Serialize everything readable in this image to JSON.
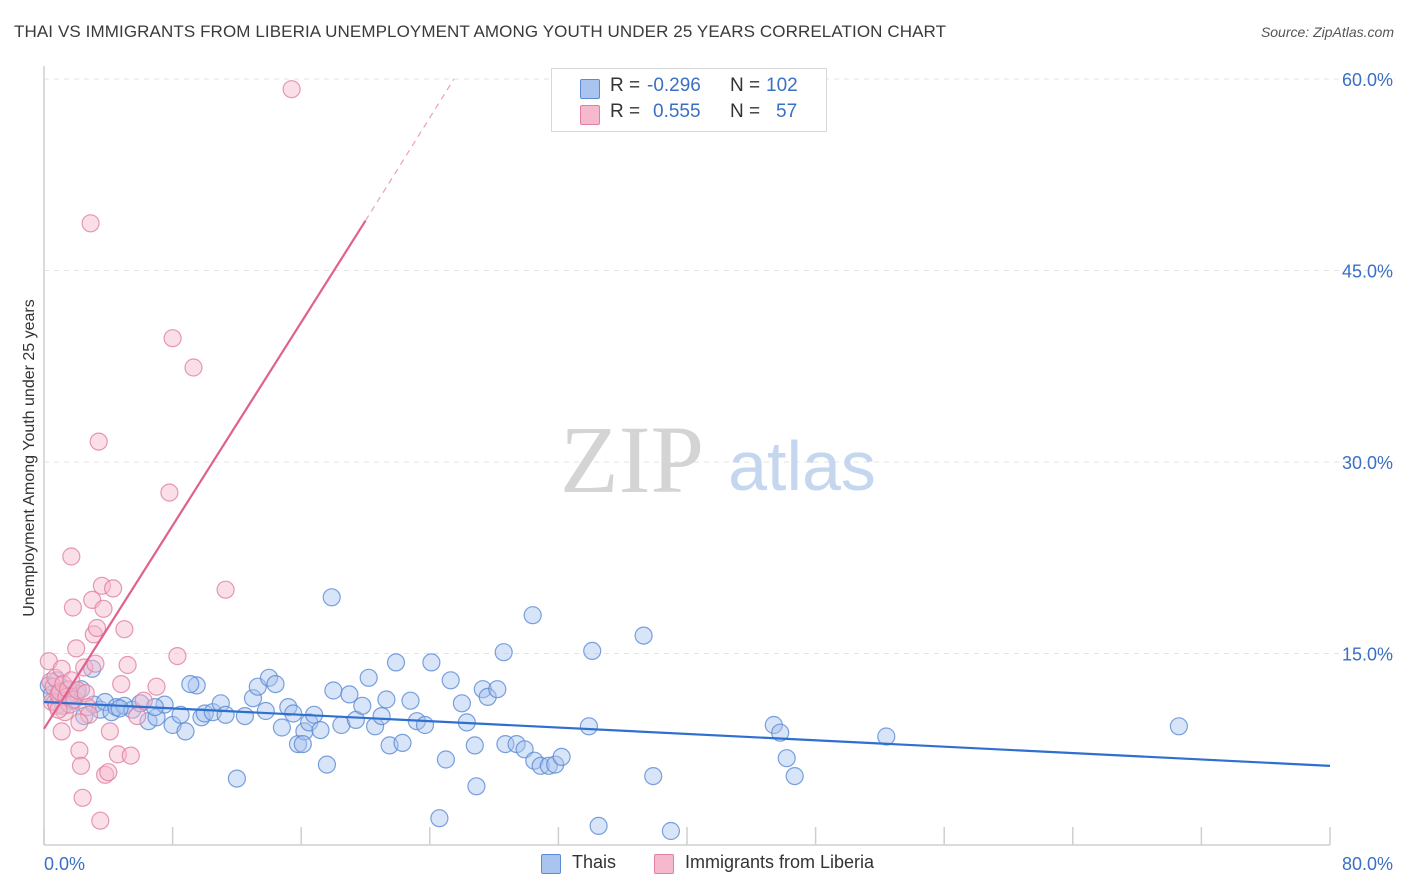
{
  "title": "THAI VS IMMIGRANTS FROM LIBERIA UNEMPLOYMENT AMONG YOUTH UNDER 25 YEARS CORRELATION CHART",
  "source": "Source: ZipAtlas.com",
  "watermark": {
    "zip": "ZIP",
    "atlas": "atlas"
  },
  "legend": {
    "rows": [
      {
        "r_label": "R =",
        "r_value": "-0.296",
        "n_label": "N =",
        "n_value": "102",
        "color": "#a9c4ee",
        "edge": "#5a8ad6"
      },
      {
        "r_label": "R =",
        "r_value": "0.555",
        "n_label": "N =",
        "n_value": "57",
        "color": "#f6b8cc",
        "edge": "#e07fa0"
      }
    ]
  },
  "bottom_legend": [
    {
      "label": "Thais",
      "color": "#a9c4ee",
      "edge": "#5a8ad6"
    },
    {
      "label": "Immigrants from Liberia",
      "color": "#f6b8cc",
      "edge": "#e07fa0"
    }
  ],
  "chart_data": {
    "type": "scatter",
    "title": "THAI VS IMMIGRANTS FROM LIBERIA UNEMPLOYMENT AMONG YOUTH UNDER 25 YEARS CORRELATION CHART",
    "xlabel": "",
    "ylabel": "Unemployment Among Youth under 25 years",
    "xlim": [
      0,
      80
    ],
    "ylim": [
      0,
      60
    ],
    "x_tick_labels": [
      "0.0%",
      "80.0%"
    ],
    "y_tick_values": [
      15,
      30,
      45,
      60
    ],
    "y_tick_labels": [
      "15.0%",
      "30.0%",
      "45.0%",
      "60.0%"
    ],
    "grid": true,
    "legend_position": "top-center",
    "series": [
      {
        "name": "Thais",
        "color": "#a9c4ee",
        "edge": "#5a8ad6",
        "line_color": "#2f6fcf",
        "trend": {
          "x": [
            0,
            80
          ],
          "y": [
            11.2,
            6.2
          ]
        },
        "points": [
          [
            0.3,
            12.5
          ],
          [
            0.5,
            11.8
          ],
          [
            0.7,
            11.2
          ],
          [
            0.8,
            12.9
          ],
          [
            1.0,
            11.5
          ],
          [
            1.2,
            10.9
          ],
          [
            1.4,
            12.1
          ],
          [
            1.6,
            11.7
          ],
          [
            1.8,
            11.3
          ],
          [
            2.0,
            11.9
          ],
          [
            2.3,
            12.2
          ],
          [
            2.5,
            10.1
          ],
          [
            3.0,
            13.8
          ],
          [
            3.1,
            11.0
          ],
          [
            3.5,
            10.6
          ],
          [
            3.8,
            11.2
          ],
          [
            4.2,
            10.4
          ],
          [
            4.5,
            10.8
          ],
          [
            5.0,
            10.9
          ],
          [
            5.5,
            10.6
          ],
          [
            6.0,
            11.1
          ],
          [
            6.5,
            9.7
          ],
          [
            7.0,
            10.0
          ],
          [
            7.5,
            11.0
          ],
          [
            8.0,
            9.4
          ],
          [
            8.5,
            10.2
          ],
          [
            8.8,
            8.9
          ],
          [
            9.5,
            12.5
          ],
          [
            9.8,
            10.0
          ],
          [
            10.0,
            10.3
          ],
          [
            10.5,
            10.4
          ],
          [
            11.0,
            11.1
          ],
          [
            11.3,
            10.2
          ],
          [
            12.0,
            5.2
          ],
          [
            12.5,
            10.1
          ],
          [
            13.0,
            11.5
          ],
          [
            13.3,
            12.4
          ],
          [
            13.8,
            10.5
          ],
          [
            14.0,
            13.1
          ],
          [
            14.4,
            12.6
          ],
          [
            14.8,
            9.2
          ],
          [
            15.2,
            10.8
          ],
          [
            15.5,
            10.3
          ],
          [
            15.8,
            7.9
          ],
          [
            16.2,
            8.9
          ],
          [
            16.5,
            9.6
          ],
          [
            16.8,
            10.2
          ],
          [
            17.2,
            9.0
          ],
          [
            17.6,
            6.3
          ],
          [
            18.0,
            12.1
          ],
          [
            18.5,
            9.4
          ],
          [
            19.0,
            11.8
          ],
          [
            19.4,
            9.8
          ],
          [
            19.8,
            10.9
          ],
          [
            20.2,
            13.1
          ],
          [
            20.6,
            9.3
          ],
          [
            21.0,
            10.1
          ],
          [
            21.5,
            7.8
          ],
          [
            21.9,
            14.3
          ],
          [
            22.3,
            8.0
          ],
          [
            22.8,
            11.3
          ],
          [
            23.2,
            9.7
          ],
          [
            23.7,
            9.4
          ],
          [
            24.1,
            14.3
          ],
          [
            24.6,
            2.1
          ],
          [
            25.0,
            6.7
          ],
          [
            25.3,
            12.9
          ],
          [
            26.0,
            11.1
          ],
          [
            26.3,
            9.6
          ],
          [
            26.8,
            7.8
          ],
          [
            27.3,
            12.2
          ],
          [
            27.6,
            11.6
          ],
          [
            28.2,
            12.2
          ],
          [
            28.7,
            7.9
          ],
          [
            29.4,
            7.9
          ],
          [
            29.9,
            7.5
          ],
          [
            30.5,
            6.6
          ],
          [
            30.9,
            6.2
          ],
          [
            31.4,
            6.2
          ],
          [
            31.8,
            6.3
          ],
          [
            32.2,
            6.9
          ],
          [
            33.9,
            9.3
          ],
          [
            34.5,
            1.5
          ],
          [
            37.3,
            16.4
          ],
          [
            37.9,
            5.4
          ],
          [
            39.0,
            1.1
          ],
          [
            45.4,
            9.4
          ],
          [
            46.2,
            6.8
          ],
          [
            46.7,
            5.4
          ],
          [
            52.4,
            8.5
          ],
          [
            70.6,
            9.3
          ],
          [
            17.9,
            19.4
          ],
          [
            30.4,
            18.0
          ],
          [
            28.6,
            15.1
          ],
          [
            34.1,
            15.2
          ],
          [
            45.8,
            8.8
          ],
          [
            16.1,
            7.9
          ],
          [
            26.9,
            4.6
          ],
          [
            21.3,
            11.4
          ],
          [
            9.1,
            12.6
          ],
          [
            4.7,
            10.7
          ],
          [
            6.9,
            10.8
          ]
        ]
      },
      {
        "name": "Immigrants from Liberia",
        "color": "#f6b8cc",
        "edge": "#e07fa0",
        "line_color": "#e0608e",
        "trend": {
          "x": [
            0,
            20
          ],
          "y": [
            9.1,
            48.9
          ]
        },
        "trend_dashed": {
          "x": [
            20,
            25.5
          ],
          "y": [
            48.9,
            60.0
          ]
        },
        "points": [
          [
            0.3,
            14.4
          ],
          [
            0.4,
            12.8
          ],
          [
            0.5,
            11.2
          ],
          [
            0.6,
            12.4
          ],
          [
            0.7,
            13.1
          ],
          [
            0.8,
            10.9
          ],
          [
            0.9,
            11.8
          ],
          [
            1.0,
            12.0
          ],
          [
            1.1,
            13.8
          ],
          [
            1.2,
            12.6
          ],
          [
            1.3,
            10.4
          ],
          [
            1.4,
            11.6
          ],
          [
            1.5,
            12.2
          ],
          [
            1.6,
            11.0
          ],
          [
            1.7,
            12.9
          ],
          [
            1.8,
            18.6
          ],
          [
            1.9,
            11.4
          ],
          [
            2.0,
            15.4
          ],
          [
            2.1,
            12.1
          ],
          [
            2.2,
            7.4
          ],
          [
            2.3,
            6.2
          ],
          [
            2.4,
            3.7
          ],
          [
            2.5,
            13.9
          ],
          [
            2.6,
            11.9
          ],
          [
            2.7,
            10.8
          ],
          [
            2.8,
            10.2
          ],
          [
            3.0,
            19.2
          ],
          [
            3.1,
            16.5
          ],
          [
            3.2,
            14.2
          ],
          [
            3.3,
            17.0
          ],
          [
            3.5,
            1.9
          ],
          [
            3.6,
            20.3
          ],
          [
            3.8,
            5.5
          ],
          [
            4.0,
            5.7
          ],
          [
            4.1,
            8.9
          ],
          [
            4.3,
            20.1
          ],
          [
            4.6,
            7.1
          ],
          [
            4.8,
            12.6
          ],
          [
            5.0,
            16.9
          ],
          [
            5.2,
            14.1
          ],
          [
            5.4,
            7.0
          ],
          [
            6.2,
            11.3
          ],
          [
            7.0,
            12.4
          ],
          [
            7.8,
            27.6
          ],
          [
            8.3,
            14.8
          ],
          [
            9.3,
            37.4
          ],
          [
            8.0,
            39.7
          ],
          [
            2.9,
            48.7
          ],
          [
            15.4,
            59.2
          ],
          [
            3.4,
            31.6
          ],
          [
            11.3,
            20.0
          ],
          [
            1.7,
            22.6
          ],
          [
            1.1,
            8.9
          ],
          [
            2.2,
            9.6
          ],
          [
            3.7,
            18.5
          ],
          [
            0.9,
            10.6
          ],
          [
            5.8,
            10.1
          ]
        ]
      }
    ]
  }
}
